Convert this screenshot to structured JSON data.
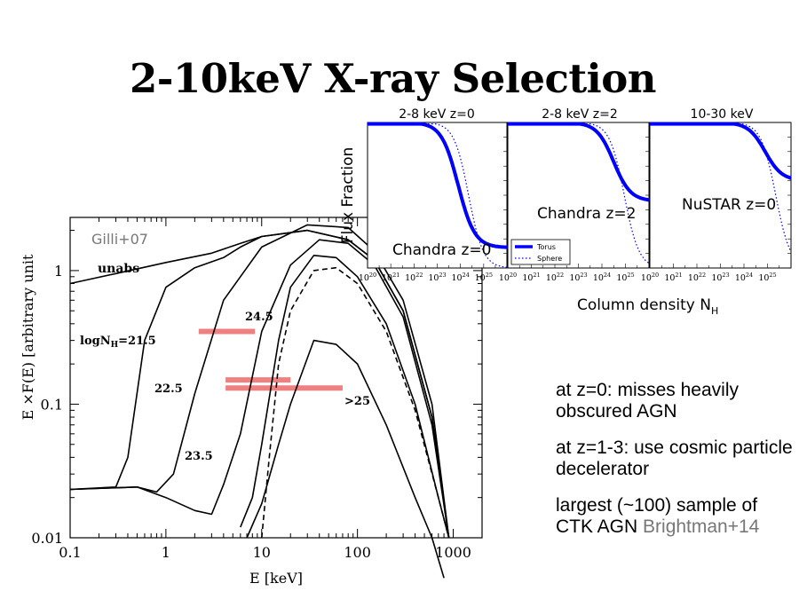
{
  "slide": {
    "title": "2-10keV X-ray Selection",
    "bullets": [
      "at z=0: misses heavily obscured AGN",
      "at z=1-3: use cosmic particle decelerator"
    ],
    "bullet3_text": "largest (~100) sample of CTK AGN ",
    "bullet3_citation": "Brightman+14"
  },
  "chart_data": [
    {
      "type": "line",
      "xlabel": "E [keV]",
      "ylabel": "E ×F(E) [arbitrary unit",
      "x_scale": "log",
      "y_scale": "log",
      "xlim": [
        0.1,
        2000
      ],
      "ylim": [
        0.01,
        2.5
      ],
      "x_ticks": [
        "0.1",
        "1",
        "10",
        "100",
        "1000"
      ],
      "y_ticks": [
        "0.01",
        "0.1",
        "1"
      ],
      "source_label": "Gilli+07",
      "series": [
        {
          "name": "unabs",
          "x": [
            0.1,
            0.3,
            1,
            3,
            6,
            10,
            30,
            80,
            150,
            300,
            600,
            900
          ],
          "y": [
            0.8,
            0.95,
            1.15,
            1.35,
            1.6,
            1.8,
            2.0,
            1.7,
            1.2,
            0.5,
            0.08,
            0.01
          ]
        },
        {
          "name": "logNH=21.5",
          "x": [
            0.1,
            0.3,
            0.4,
            0.6,
            1,
            2,
            4,
            6,
            10,
            30,
            80,
            150,
            300,
            600,
            900
          ],
          "y": [
            0.023,
            0.024,
            0.04,
            0.3,
            0.75,
            1.05,
            1.25,
            1.5,
            1.8,
            2.0,
            1.7,
            1.2,
            0.5,
            0.08,
            0.01
          ]
        },
        {
          "name": "22.5",
          "x": [
            0.1,
            0.5,
            0.8,
            1.2,
            2,
            4,
            6,
            10,
            30,
            80,
            150,
            300,
            600,
            900
          ],
          "y": [
            0.023,
            0.024,
            0.022,
            0.03,
            0.12,
            0.6,
            0.9,
            1.5,
            2.2,
            2.1,
            1.4,
            0.6,
            0.1,
            0.01
          ]
        },
        {
          "name": "23.5",
          "x": [
            0.1,
            0.5,
            1,
            2,
            3,
            4,
            6,
            10,
            20,
            40,
            80,
            150,
            300,
            600,
            900
          ],
          "y": [
            0.023,
            0.024,
            0.02,
            0.016,
            0.015,
            0.025,
            0.06,
            0.35,
            1.1,
            1.7,
            1.6,
            1.1,
            0.45,
            0.07,
            0.01
          ]
        },
        {
          "name": "24.5",
          "x": [
            6,
            8,
            10,
            15,
            20,
            35,
            60,
            100,
            200,
            400,
            700,
            900
          ],
          "y": [
            0.012,
            0.02,
            0.05,
            0.3,
            0.75,
            1.3,
            1.25,
            0.9,
            0.4,
            0.1,
            0.02,
            0.01
          ]
        },
        {
          "name": ">25",
          "x": [
            7,
            10,
            15,
            20,
            35,
            60,
            100,
            200,
            400,
            600,
            800
          ],
          "y": [
            0.01,
            0.018,
            0.05,
            0.1,
            0.3,
            0.28,
            0.2,
            0.07,
            0.02,
            0.01,
            0.005
          ]
        },
        {
          "name": "dashed",
          "dashed": true,
          "x": [
            10,
            12,
            15,
            20,
            35,
            60,
            100,
            200,
            400,
            700,
            900
          ],
          "y": [
            0.01,
            0.04,
            0.2,
            0.5,
            1.0,
            1.05,
            0.8,
            0.35,
            0.09,
            0.02,
            0.01
          ]
        }
      ],
      "curve_labels": [
        "unabs",
        "logN",
        "H",
        "=21.5",
        "22.5",
        "23.5",
        "24.5",
        ">25"
      ],
      "selection_bands": [
        {
          "x0": 2.2,
          "x1": 8.5,
          "y": 0.35
        },
        {
          "x0": 4.2,
          "x1": 20,
          "y": 0.152
        },
        {
          "x0": 4.2,
          "x1": 70,
          "y": 0.132
        }
      ],
      "band_color": "#f08080"
    },
    {
      "type": "line",
      "panels": [
        {
          "title": "2-8 keV z=0",
          "label": "Chandra z=0",
          "half_x": 23.9,
          "floor": 0.14
        },
        {
          "title": "2-8 keV z=2",
          "label": "Chandra z=2",
          "half_x": 24.5,
          "floor": 0.46
        },
        {
          "title": "10-30 keV",
          "label": "NuSTAR z=0",
          "half_x": 24.9,
          "floor": 0.6
        }
      ],
      "ylabel": "Flux Fraction",
      "xlabel_main": "Column density N",
      "xlabel_sub": "H",
      "x_ticks": [
        "10",
        "10",
        "10",
        "10",
        "10",
        "10"
      ],
      "x_tick_powers": [
        "20",
        "21",
        "22",
        "23",
        "24",
        "25"
      ],
      "series": [
        {
          "name": "Torus",
          "color": "#0000ff"
        },
        {
          "name": "Sphere",
          "color": "#0000ff",
          "dotted": true
        }
      ]
    }
  ]
}
